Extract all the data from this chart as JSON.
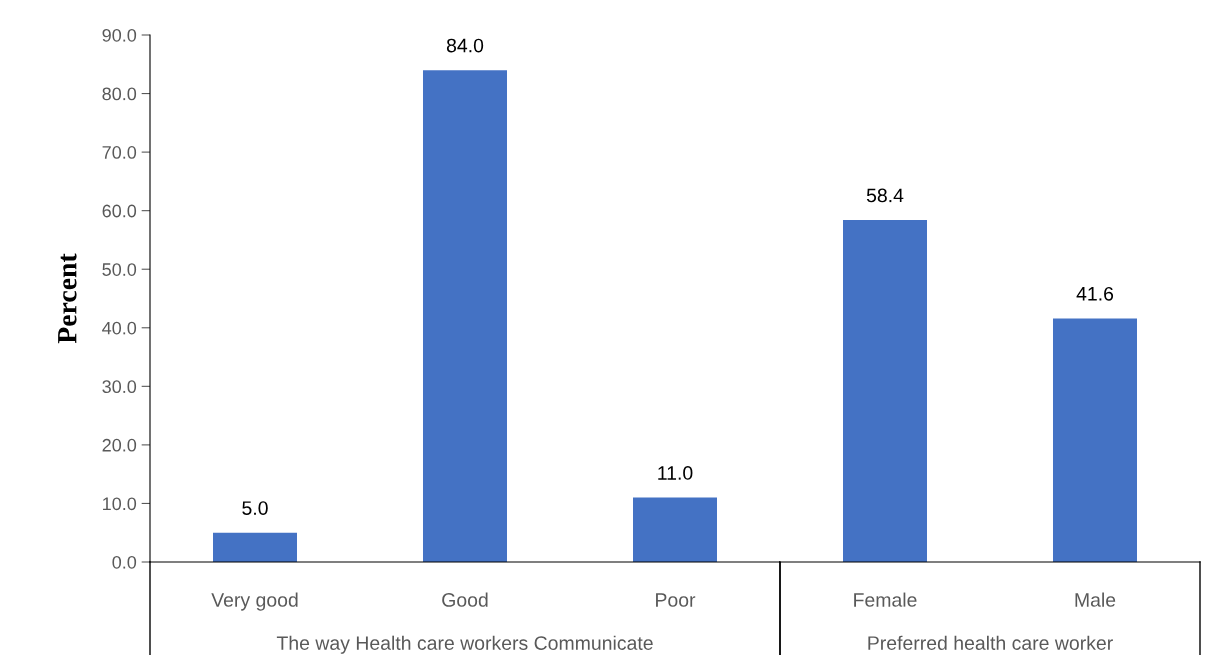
{
  "chart_data": [
    {
      "type": "bar",
      "categories": [
        "Very good",
        "Good",
        "Poor"
      ],
      "values": [
        5.0,
        84.0,
        11.0
      ],
      "color": "#4472c4",
      "xlabel": "The way Health care workers Communicate",
      "ylabel": "Percent",
      "ylim": [
        0,
        90
      ],
      "yticks": [
        {
          "value": 0,
          "label": "0.0"
        },
        {
          "value": 10,
          "label": "10.0"
        },
        {
          "value": 20,
          "label": "20.0"
        },
        {
          "value": 30,
          "label": "30.0"
        },
        {
          "value": 40,
          "label": "40.0"
        },
        {
          "value": 50,
          "label": "50.0"
        },
        {
          "value": 60,
          "label": "60.0"
        },
        {
          "value": 70,
          "label": "70.0"
        },
        {
          "value": 80,
          "label": "80.0"
        },
        {
          "value": 90,
          "label": "90.0"
        }
      ],
      "value_labels": [
        "5.0",
        "84.0",
        "11.0"
      ]
    },
    {
      "type": "bar",
      "categories": [
        "Female",
        "Male"
      ],
      "values": [
        58.4,
        41.6
      ],
      "color": "#4472c4",
      "xlabel": "Preferred health care worker",
      "ylim": [
        0,
        90
      ],
      "tick_labels": "x",
      "data_labels": true
    }
  ]
}
